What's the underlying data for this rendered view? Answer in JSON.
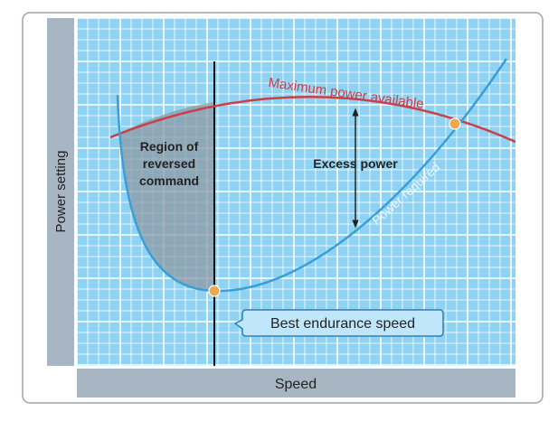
{
  "y_axis_label": "Power setting",
  "x_axis_label": "Speed",
  "curves": {
    "max_power": "Maximum power available",
    "power_required": "Power required"
  },
  "region_label": [
    "Region of",
    "reversed",
    "command"
  ],
  "excess_label": "Excess power",
  "callout": "Best endurance speed"
}
